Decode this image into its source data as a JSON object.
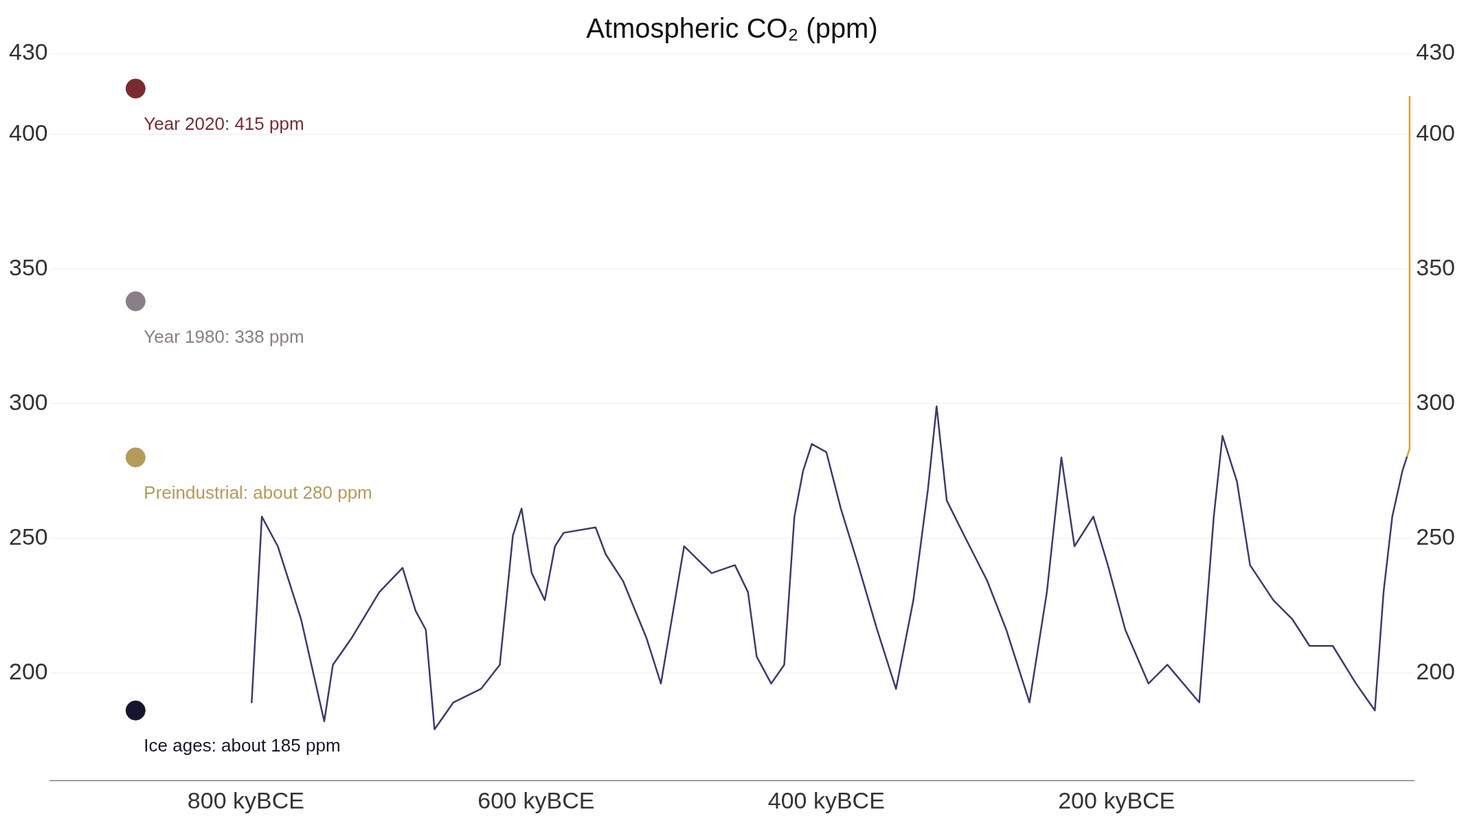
{
  "chart_data": {
    "type": "line",
    "title": "Atmospheric CO₂ (ppm)",
    "xlim": [
      -935,
      5
    ],
    "xticks": [
      {
        "value": -800,
        "label": "800 kyBCE"
      },
      {
        "value": -600,
        "label": "600 kyBCE"
      },
      {
        "value": -400,
        "label": "400 kyBCE"
      },
      {
        "value": -200,
        "label": "200 kyBCE"
      }
    ],
    "ylim": [
      160,
      430
    ],
    "yticks": [
      200,
      250,
      300,
      350,
      400,
      430
    ],
    "y2lim": [
      160,
      430
    ],
    "y2ticks": [
      200,
      250,
      300,
      350,
      400,
      430
    ],
    "grid": "y",
    "legend": false,
    "series": [
      {
        "color": "#3b3b6e",
        "x": [
          -796,
          -789,
          -778,
          -762,
          -746,
          -740,
          -727,
          -708,
          -692,
          -683,
          -676,
          -670,
          -657,
          -638,
          -625,
          -616,
          -610,
          -603,
          -594,
          -587,
          -581,
          -559,
          -552,
          -540,
          -524,
          -514,
          -498,
          -479,
          -463,
          -454,
          -448,
          -438,
          -429,
          -422,
          -416,
          -410,
          -400,
          -390,
          -378,
          -365,
          -352,
          -340,
          -330,
          -324,
          -317,
          -305,
          -289,
          -276,
          -260,
          -248,
          -238,
          -229,
          -216,
          -206,
          -194,
          -178,
          -165,
          -143,
          -133,
          -127,
          -117,
          -108,
          -92,
          -79,
          -67,
          -51,
          -35,
          -22,
          -16,
          -10,
          -3,
          0
        ],
        "values": [
          189,
          258,
          247,
          220,
          182,
          203,
          213,
          230,
          239,
          223,
          216,
          179,
          189,
          194,
          203,
          251,
          261,
          237,
          227,
          247,
          252,
          254,
          244,
          234,
          213,
          196,
          247,
          237,
          240,
          230,
          206,
          196,
          203,
          258,
          275,
          285,
          282,
          261,
          240,
          216,
          194,
          227,
          268,
          299,
          264,
          251,
          234,
          216,
          189,
          230,
          280,
          247,
          258,
          240,
          216,
          196,
          203,
          189,
          258,
          288,
          271,
          240,
          227,
          220,
          210,
          210,
          196,
          186,
          230,
          258,
          275,
          280
        ]
      },
      {
        "color": "#e0a030",
        "x": [
          0,
          1.8,
          1.9,
          1.96,
          2.02
        ],
        "values": [
          280,
          283,
          296,
          317,
          414
        ]
      },
      {
        "type": "scatter",
        "name": "Ice ages: about 185 ppm",
        "color": "#15152e",
        "x": [
          -876
        ],
        "values": [
          186
        ]
      },
      {
        "type": "scatter",
        "name": "Preindustrial: about 280 ppm",
        "color": "#b59a5a",
        "x": [
          -876
        ],
        "values": [
          280
        ]
      },
      {
        "type": "scatter",
        "name": "Year 1980: 338 ppm",
        "color": "#8a7f86",
        "x": [
          -876
        ],
        "values": [
          338
        ]
      },
      {
        "type": "scatter",
        "name": "Year 2020: 415 ppm",
        "color": "#7a2a32",
        "x": [
          -876
        ],
        "values": [
          417
        ]
      }
    ]
  }
}
